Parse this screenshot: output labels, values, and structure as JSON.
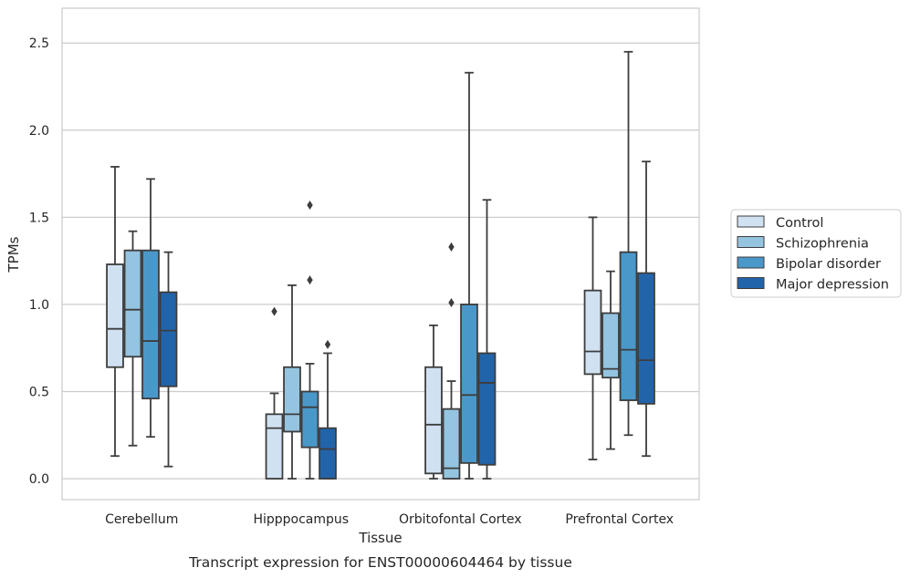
{
  "chart_data": {
    "type": "boxplot",
    "title": "",
    "xlabel": "Tissue",
    "ylabel": "TPMs",
    "caption": "Transcript expression for ENST00000604464 by tissue",
    "ylim": [
      -0.12,
      2.7
    ],
    "yticks": [
      "0.0",
      "0.5",
      "1.0",
      "1.5",
      "2.0",
      "2.5"
    ],
    "grid": "horizontal",
    "legend_position": "right",
    "categories": [
      "Cerebellum",
      "Hipppocampus",
      "Orbitofontal Cortex",
      "Prefrontal Cortex"
    ],
    "series": [
      {
        "name": "Control",
        "color": "#d0e1f2",
        "boxes": [
          {
            "whislo": 0.13,
            "q1": 0.64,
            "med": 0.86,
            "q3": 1.23,
            "whishi": 1.79,
            "fliers": []
          },
          {
            "whislo": 0.0,
            "q1": 0.0,
            "med": 0.29,
            "q3": 0.37,
            "whishi": 0.49,
            "fliers": [
              0.96
            ]
          },
          {
            "whislo": 0.0,
            "q1": 0.03,
            "med": 0.31,
            "q3": 0.64,
            "whishi": 0.88,
            "fliers": []
          },
          {
            "whislo": 0.11,
            "q1": 0.6,
            "med": 0.73,
            "q3": 1.08,
            "whishi": 1.5,
            "fliers": []
          }
        ]
      },
      {
        "name": "Schizophrenia",
        "color": "#94c4df",
        "boxes": [
          {
            "whislo": 0.19,
            "q1": 0.7,
            "med": 0.97,
            "q3": 1.31,
            "whishi": 1.42,
            "fliers": []
          },
          {
            "whislo": 0.0,
            "q1": 0.27,
            "med": 0.37,
            "q3": 0.64,
            "whishi": 1.11,
            "fliers": []
          },
          {
            "whislo": 0.0,
            "q1": 0.0,
            "med": 0.06,
            "q3": 0.4,
            "whishi": 0.56,
            "fliers": [
              1.01,
              1.33
            ]
          },
          {
            "whislo": 0.17,
            "q1": 0.58,
            "med": 0.63,
            "q3": 0.95,
            "whishi": 1.19,
            "fliers": []
          }
        ]
      },
      {
        "name": "Bipolar disorder",
        "color": "#4a98c9",
        "boxes": [
          {
            "whislo": 0.24,
            "q1": 0.46,
            "med": 0.79,
            "q3": 1.31,
            "whishi": 1.72,
            "fliers": []
          },
          {
            "whislo": 0.0,
            "q1": 0.18,
            "med": 0.41,
            "q3": 0.5,
            "whishi": 0.66,
            "fliers": [
              1.14,
              1.57
            ]
          },
          {
            "whislo": 0.0,
            "q1": 0.09,
            "med": 0.48,
            "q3": 1.0,
            "whishi": 2.33,
            "fliers": []
          },
          {
            "whislo": 0.25,
            "q1": 0.45,
            "med": 0.74,
            "q3": 1.3,
            "whishi": 2.45,
            "fliers": []
          }
        ]
      },
      {
        "name": "Major depression",
        "color": "#2264aa",
        "boxes": [
          {
            "whislo": 0.07,
            "q1": 0.53,
            "med": 0.85,
            "q3": 1.07,
            "whishi": 1.3,
            "fliers": []
          },
          {
            "whislo": 0.0,
            "q1": 0.0,
            "med": 0.17,
            "q3": 0.29,
            "whishi": 0.72,
            "fliers": [
              0.77
            ]
          },
          {
            "whislo": 0.0,
            "q1": 0.08,
            "med": 0.55,
            "q3": 0.72,
            "whishi": 1.6,
            "fliers": []
          },
          {
            "whislo": 0.13,
            "q1": 0.43,
            "med": 0.68,
            "q3": 1.18,
            "whishi": 1.82,
            "fliers": []
          }
        ]
      }
    ]
  }
}
